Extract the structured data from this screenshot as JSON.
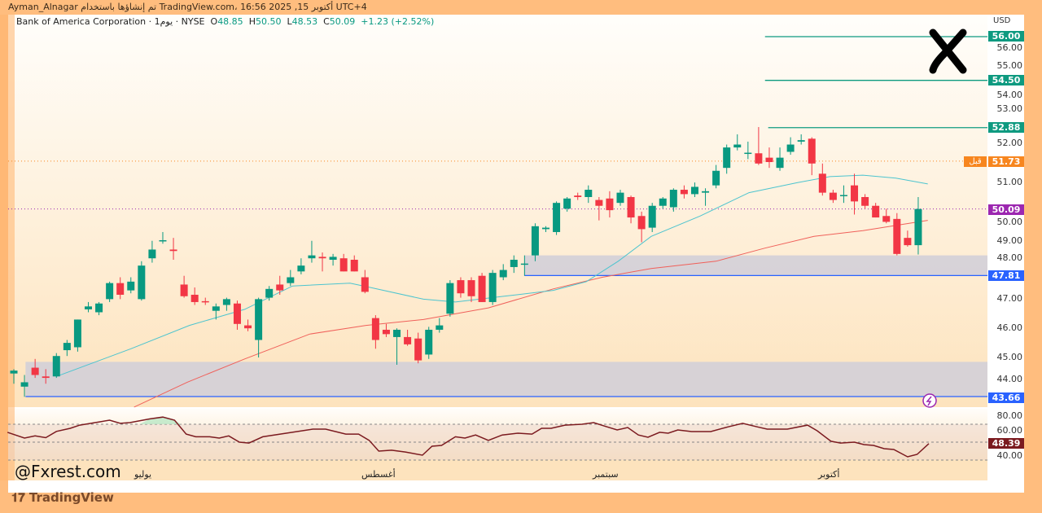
{
  "topbar": {
    "text": "Ayman_Alnagar تم إنشاؤها باستخدام TradingView.com، 16:56 2025 ,15 أكتوبر UTC+4"
  },
  "legend": {
    "symbol": "Bank of America Corporation · 1يوم · NYSE",
    "open_label": "O",
    "open": "48.85",
    "high_label": "H",
    "high": "50.50",
    "low_label": "L",
    "low": "48.53",
    "close_label": "C",
    "close": "50.09",
    "change": "+1.23 (+2.52%)"
  },
  "price_axis": {
    "currency": "USD",
    "ticks": [
      "56.00",
      "55.00",
      "54.00",
      "53.00",
      "52.00",
      "51.00",
      "50.00",
      "49.00",
      "48.00",
      "47.00",
      "46.00",
      "45.00",
      "44.00"
    ]
  },
  "tags": {
    "t5600": "56.00",
    "t5450": "54.50",
    "t5288": "52.88",
    "t5173": "51.73",
    "before": "قبل",
    "t5009": "50.09",
    "t4781": "47.81",
    "t4366": "43.66",
    "rsi": "48.39"
  },
  "rsi_axis": {
    "ticks": [
      "80.00",
      "60.00",
      "40.00"
    ]
  },
  "date_axis": [
    "يوليو",
    "أغسطس",
    "سبتمبر",
    "أكتوبر"
  ],
  "watermark": "@Fxrest.com",
  "footer_logo": "TradingView",
  "colors": {
    "up": "#089981",
    "down": "#f23645",
    "ma_fast": "#4cc4cf",
    "ma_slow": "#f0605a",
    "rsi": "#7b1a1f",
    "zone": "#d3cfd8",
    "level_green": "#0e9a80",
    "level_blue": "#2962ff",
    "pre_market": "#f7861f",
    "last_price": "#9c27b0"
  },
  "chart_data": {
    "type": "candlestick",
    "title": "Bank of America Corporation · 1D · NYSE",
    "ylim": [
      43.2,
      56.5
    ],
    "ohlc": [
      [
        44.45,
        44.6,
        44.1,
        44.55
      ],
      [
        44.0,
        44.4,
        43.65,
        44.15
      ],
      [
        44.65,
        44.95,
        44.3,
        44.4
      ],
      [
        44.35,
        44.6,
        44.1,
        44.3
      ],
      [
        44.35,
        45.15,
        44.3,
        45.05
      ],
      [
        45.25,
        45.6,
        45.05,
        45.5
      ],
      [
        45.35,
        46.3,
        45.2,
        46.3
      ],
      [
        46.65,
        46.9,
        46.55,
        46.75
      ],
      [
        46.55,
        46.9,
        46.45,
        46.85
      ],
      [
        47.0,
        47.6,
        46.9,
        47.55
      ],
      [
        47.55,
        47.75,
        47.0,
        47.15
      ],
      [
        47.3,
        47.75,
        47.2,
        47.6
      ],
      [
        47.0,
        48.3,
        46.95,
        48.15
      ],
      [
        48.4,
        49.0,
        48.25,
        48.7
      ],
      [
        48.98,
        49.3,
        48.9,
        49.02
      ],
      [
        48.7,
        49.1,
        48.35,
        48.65
      ],
      [
        47.5,
        47.8,
        47.05,
        47.1
      ],
      [
        47.15,
        47.4,
        46.8,
        46.9
      ],
      [
        46.93,
        47.05,
        46.8,
        46.9
      ],
      [
        46.6,
        46.85,
        46.3,
        46.75
      ],
      [
        46.8,
        47.05,
        46.6,
        47.0
      ],
      [
        46.85,
        46.95,
        45.95,
        46.15
      ],
      [
        46.1,
        46.3,
        45.9,
        46.0
      ],
      [
        45.6,
        47.05,
        45.0,
        47.0
      ],
      [
        47.05,
        47.45,
        46.95,
        47.35
      ],
      [
        47.5,
        47.8,
        47.15,
        47.3
      ],
      [
        47.55,
        48.0,
        47.45,
        47.75
      ],
      [
        47.95,
        48.4,
        47.85,
        48.15
      ],
      [
        48.4,
        49.0,
        48.25,
        48.5
      ],
      [
        48.45,
        48.6,
        47.95,
        48.4
      ],
      [
        48.35,
        48.55,
        48.15,
        48.45
      ],
      [
        48.4,
        48.55,
        47.95,
        47.95
      ],
      [
        48.35,
        48.5,
        47.95,
        47.95
      ],
      [
        47.75,
        48.0,
        47.2,
        47.25
      ],
      [
        46.35,
        46.45,
        45.3,
        45.6
      ],
      [
        45.95,
        46.15,
        45.7,
        45.8
      ],
      [
        45.7,
        46.0,
        44.75,
        45.95
      ],
      [
        45.7,
        45.95,
        45.4,
        45.45
      ],
      [
        45.65,
        45.85,
        44.8,
        44.9
      ],
      [
        45.1,
        46.05,
        44.95,
        45.95
      ],
      [
        45.95,
        46.35,
        45.85,
        46.1
      ],
      [
        46.5,
        47.65,
        46.4,
        47.55
      ],
      [
        47.65,
        47.75,
        47.05,
        47.2
      ],
      [
        47.65,
        47.75,
        46.9,
        47.1
      ],
      [
        47.8,
        47.9,
        46.9,
        46.9
      ],
      [
        46.9,
        48.0,
        46.8,
        47.9
      ],
      [
        47.75,
        48.2,
        47.65,
        48.0
      ],
      [
        48.1,
        48.5,
        47.9,
        48.35
      ],
      [
        48.18,
        48.5,
        47.8,
        48.22
      ],
      [
        48.5,
        49.6,
        48.3,
        49.5
      ],
      [
        49.4,
        49.5,
        49.3,
        49.45
      ],
      [
        49.3,
        50.35,
        49.2,
        50.3
      ],
      [
        50.1,
        50.5,
        50.0,
        50.45
      ],
      [
        50.55,
        50.65,
        50.4,
        50.5
      ],
      [
        50.5,
        50.9,
        50.3,
        50.75
      ],
      [
        50.4,
        50.5,
        49.7,
        50.2
      ],
      [
        50.45,
        50.7,
        49.8,
        50.05
      ],
      [
        50.3,
        50.75,
        50.2,
        50.65
      ],
      [
        50.5,
        50.55,
        49.6,
        49.8
      ],
      [
        49.85,
        50.0,
        48.95,
        49.4
      ],
      [
        49.45,
        50.3,
        49.3,
        50.2
      ],
      [
        50.2,
        50.5,
        50.1,
        50.45
      ],
      [
        50.15,
        50.8,
        50.0,
        50.75
      ],
      [
        50.75,
        50.9,
        50.45,
        50.6
      ],
      [
        50.6,
        51.0,
        50.5,
        50.85
      ],
      [
        50.65,
        50.8,
        50.2,
        50.7
      ],
      [
        50.9,
        51.6,
        50.8,
        51.4
      ],
      [
        51.5,
        52.3,
        51.3,
        52.2
      ],
      [
        52.2,
        52.65,
        52.1,
        52.3
      ],
      [
        51.98,
        52.4,
        51.8,
        52.02
      ],
      [
        52.0,
        52.9,
        51.6,
        51.65
      ],
      [
        51.85,
        52.2,
        51.5,
        51.7
      ],
      [
        51.5,
        52.2,
        51.4,
        51.85
      ],
      [
        52.05,
        52.55,
        51.95,
        52.3
      ],
      [
        52.4,
        52.65,
        52.3,
        52.45
      ],
      [
        52.5,
        52.55,
        51.25,
        51.65
      ],
      [
        51.3,
        51.65,
        50.55,
        50.65
      ],
      [
        50.65,
        50.75,
        50.3,
        50.4
      ],
      [
        50.53,
        50.9,
        50.3,
        50.57
      ],
      [
        50.9,
        51.3,
        49.9,
        50.35
      ],
      [
        50.5,
        50.6,
        50.1,
        50.2
      ],
      [
        50.2,
        50.3,
        49.8,
        49.8
      ],
      [
        49.85,
        50.1,
        49.6,
        49.65
      ],
      [
        49.75,
        49.95,
        48.5,
        48.55
      ],
      [
        49.1,
        49.35,
        48.8,
        48.85
      ],
      [
        48.85,
        50.5,
        48.53,
        50.09
      ]
    ],
    "ma_fast": [
      [
        4,
        44.35
      ],
      [
        11,
        45.3
      ],
      [
        16.5,
        46.1
      ],
      [
        21.7,
        46.65
      ],
      [
        26.2,
        47.45
      ],
      [
        31.6,
        47.55
      ],
      [
        33.5,
        47.4
      ],
      [
        38.5,
        47.0
      ],
      [
        41.5,
        46.9
      ],
      [
        46.1,
        47.1
      ],
      [
        50.7,
        47.3
      ],
      [
        53.8,
        47.6
      ],
      [
        56.8,
        48.3
      ],
      [
        59.9,
        49.15
      ],
      [
        64.5,
        49.85
      ],
      [
        69.1,
        50.65
      ],
      [
        73.7,
        51.0
      ],
      [
        76.7,
        51.2
      ],
      [
        79.8,
        51.25
      ],
      [
        82.9,
        51.15
      ],
      [
        85.9,
        50.95
      ]
    ],
    "ma_slow": [
      [
        11.3,
        43.3
      ],
      [
        16.3,
        44.15
      ],
      [
        21.7,
        44.95
      ],
      [
        27.8,
        45.8
      ],
      [
        33.1,
        46.1
      ],
      [
        38.5,
        46.3
      ],
      [
        44.6,
        46.7
      ],
      [
        50.7,
        47.35
      ],
      [
        55.3,
        47.75
      ],
      [
        59.9,
        48.05
      ],
      [
        66,
        48.3
      ],
      [
        70.6,
        48.75
      ],
      [
        75.2,
        49.15
      ],
      [
        79.8,
        49.35
      ],
      [
        85.9,
        49.7
      ]
    ],
    "zones": [
      {
        "from_bar": 48,
        "low": 47.81,
        "high": 48.5
      },
      {
        "from_bar": 1.1,
        "low": 43.66,
        "high": 44.85
      }
    ],
    "levels": [
      {
        "price": 56.0,
        "from_bar": 70.6,
        "kind": "green"
      },
      {
        "price": 54.5,
        "from_bar": 70.6,
        "kind": "green"
      },
      {
        "price": 52.88,
        "from_bar": 70.9,
        "kind": "green"
      },
      {
        "price": 47.81,
        "from_bar": 48,
        "kind": "blue"
      },
      {
        "price": 43.66,
        "from_bar": 1.1,
        "kind": "blue"
      }
    ],
    "rsi": {
      "ylim": [
        30,
        90
      ],
      "bands": [
        30,
        50,
        70
      ],
      "points": [
        [
          -0.6,
          61
        ],
        [
          1.0,
          54.5
        ],
        [
          2.0,
          57
        ],
        [
          3.0,
          55
        ],
        [
          4.0,
          62
        ],
        [
          5.3,
          65.5
        ],
        [
          6.2,
          69
        ],
        [
          8.1,
          72.7
        ],
        [
          9.0,
          74.5
        ],
        [
          10.0,
          71
        ],
        [
          10.9,
          71.8
        ],
        [
          12.8,
          76
        ],
        [
          14.0,
          78
        ],
        [
          15.1,
          74.5
        ],
        [
          16.2,
          59
        ],
        [
          17.1,
          56
        ],
        [
          18.4,
          56
        ],
        [
          19.3,
          54.5
        ],
        [
          20.2,
          57
        ],
        [
          21.2,
          50
        ],
        [
          22.1,
          49
        ],
        [
          23.4,
          56
        ],
        [
          25.6,
          60
        ],
        [
          28.1,
          64.5
        ],
        [
          29.3,
          64.5
        ],
        [
          31.2,
          59
        ],
        [
          32.4,
          59
        ],
        [
          33.4,
          52
        ],
        [
          34.3,
          40
        ],
        [
          35.5,
          41
        ],
        [
          36.8,
          39
        ],
        [
          38.4,
          35.5
        ],
        [
          39.3,
          45.5
        ],
        [
          40.2,
          46.4
        ],
        [
          41.5,
          56
        ],
        [
          42.4,
          54.5
        ],
        [
          43.4,
          58
        ],
        [
          44.6,
          52
        ],
        [
          45.9,
          58
        ],
        [
          47.4,
          60
        ],
        [
          48.7,
          59
        ],
        [
          49.6,
          65.5
        ],
        [
          50.5,
          65.5
        ],
        [
          51.8,
          69
        ],
        [
          53.4,
          70
        ],
        [
          54.5,
          71.8
        ],
        [
          55.5,
          68
        ],
        [
          56.7,
          63.6
        ],
        [
          57.7,
          66.4
        ],
        [
          58.7,
          58
        ],
        [
          59.6,
          55.5
        ],
        [
          60.7,
          61
        ],
        [
          61.5,
          60
        ],
        [
          62.4,
          63.6
        ],
        [
          63.7,
          61.8
        ],
        [
          65.5,
          61.8
        ],
        [
          67.1,
          67
        ],
        [
          68.5,
          71
        ],
        [
          69.9,
          67
        ],
        [
          70.8,
          64.5
        ],
        [
          72.7,
          64.5
        ],
        [
          74.6,
          69
        ],
        [
          75.5,
          62.7
        ],
        [
          76.8,
          51
        ],
        [
          77.7,
          49
        ],
        [
          79.0,
          50
        ],
        [
          79.9,
          47.3
        ],
        [
          80.8,
          46.4
        ],
        [
          81.8,
          42.7
        ],
        [
          82.7,
          41.8
        ],
        [
          84.0,
          33.6
        ],
        [
          84.9,
          36.4
        ],
        [
          86.0,
          48.39
        ]
      ]
    }
  }
}
